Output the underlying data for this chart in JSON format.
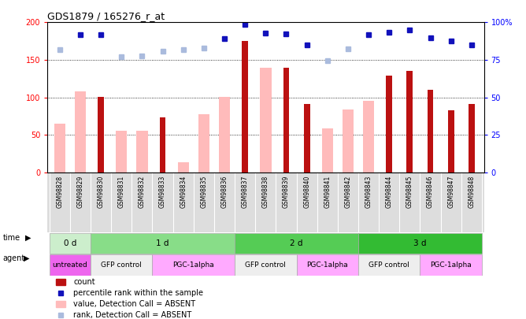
{
  "title": "GDS1879 / 165276_r_at",
  "samples": [
    "GSM98828",
    "GSM98829",
    "GSM98830",
    "GSM98831",
    "GSM98832",
    "GSM98833",
    "GSM98834",
    "GSM98835",
    "GSM98836",
    "GSM98837",
    "GSM98838",
    "GSM98839",
    "GSM98840",
    "GSM98841",
    "GSM98842",
    "GSM98843",
    "GSM98844",
    "GSM98845",
    "GSM98846",
    "GSM98847",
    "GSM98848"
  ],
  "count_values": [
    null,
    null,
    101,
    null,
    null,
    73,
    null,
    null,
    null,
    175,
    null,
    140,
    91,
    null,
    null,
    null,
    129,
    135,
    110,
    83,
    91
  ],
  "value_absent": [
    65,
    108,
    null,
    56,
    55,
    null,
    14,
    78,
    101,
    null,
    140,
    null,
    null,
    59,
    84,
    95,
    null,
    null,
    null,
    null,
    null
  ],
  "percentile_rank": [
    null,
    184,
    184,
    null,
    null,
    null,
    null,
    null,
    178,
    197,
    186,
    185,
    170,
    null,
    null,
    184,
    187,
    190,
    179,
    175,
    170
  ],
  "rank_absent": [
    164,
    null,
    null,
    154,
    155,
    162,
    164,
    166,
    null,
    null,
    null,
    null,
    null,
    149,
    165,
    null,
    null,
    null,
    null,
    null,
    null
  ],
  "time_groups": [
    {
      "label": "0 d",
      "start": 0,
      "end": 2,
      "color": "#cceecc"
    },
    {
      "label": "1 d",
      "start": 2,
      "end": 9,
      "color": "#88dd88"
    },
    {
      "label": "2 d",
      "start": 9,
      "end": 15,
      "color": "#55cc55"
    },
    {
      "label": "3 d",
      "start": 15,
      "end": 21,
      "color": "#33bb33"
    }
  ],
  "agent_groups": [
    {
      "label": "untreated",
      "start": 0,
      "end": 2,
      "color": "#ee66ee"
    },
    {
      "label": "GFP control",
      "start": 2,
      "end": 5,
      "color": "#eeeeee"
    },
    {
      "label": "PGC-1alpha",
      "start": 5,
      "end": 9,
      "color": "#ffaaff"
    },
    {
      "label": "GFP control",
      "start": 9,
      "end": 12,
      "color": "#eeeeee"
    },
    {
      "label": "PGC-1alpha",
      "start": 12,
      "end": 15,
      "color": "#ffaaff"
    },
    {
      "label": "GFP control",
      "start": 15,
      "end": 18,
      "color": "#eeeeee"
    },
    {
      "label": "PGC-1alpha",
      "start": 18,
      "end": 21,
      "color": "#ffaaff"
    }
  ],
  "ylim_left": [
    0,
    200
  ],
  "yticks_left": [
    0,
    50,
    100,
    150,
    200
  ],
  "yticks_right": [
    0,
    25,
    50,
    75,
    100
  ],
  "yticklabels_right": [
    "0",
    "25",
    "50",
    "75",
    "100%"
  ],
  "bar_color_count": "#bb1111",
  "bar_color_absent": "#ffbbbb",
  "dot_color_rank": "#1111bb",
  "dot_color_rank_absent": "#aabbdd",
  "xticklabel_bg": "#dddddd",
  "legend": [
    {
      "type": "rect",
      "color": "#bb1111",
      "label": "count"
    },
    {
      "type": "square",
      "color": "#1111bb",
      "label": "percentile rank within the sample"
    },
    {
      "type": "rect",
      "color": "#ffbbbb",
      "label": "value, Detection Call = ABSENT"
    },
    {
      "type": "square",
      "color": "#aabbdd",
      "label": "rank, Detection Call = ABSENT"
    }
  ]
}
